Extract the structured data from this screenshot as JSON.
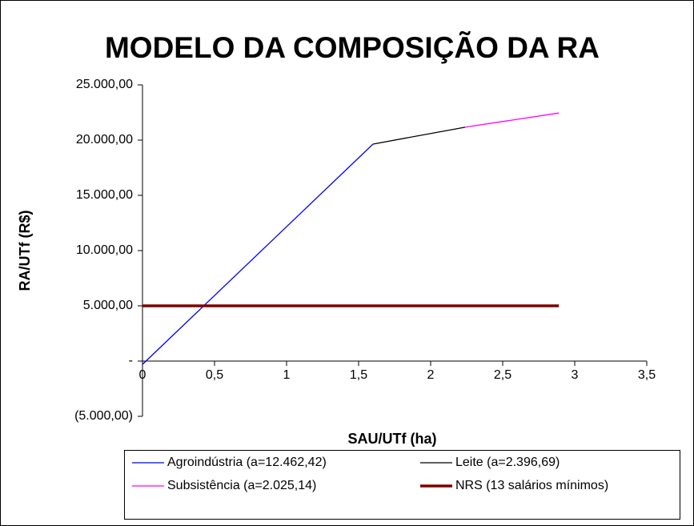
{
  "chart_data": {
    "type": "line",
    "title": "MODELO DA COMPOSIÇÃO DA RA",
    "x_label": "SAU/UTf (ha)",
    "y_label": "RA/UTf (R$)",
    "xlim": [
      0,
      3.5
    ],
    "xticks": [
      0,
      {
        "value": 0.5,
        "label": "0,5"
      },
      1,
      {
        "value": 1.5,
        "label": "1,5"
      },
      2,
      {
        "value": 2.5,
        "label": "2,5"
      },
      3,
      {
        "value": 3.5,
        "label": "3,5"
      }
    ],
    "ylim": [
      -5000,
      25000
    ],
    "yticks": [
      {
        "value": -5000,
        "label": "(5.000,00)"
      },
      {
        "value": 0,
        "label": "-"
      },
      {
        "value": 5000,
        "label": "5.000,00"
      },
      {
        "value": 10000,
        "label": "10.000,00"
      },
      {
        "value": 15000,
        "label": "15.000,00"
      },
      {
        "value": 20000,
        "label": "20.000,00"
      },
      {
        "value": 25000,
        "label": "25.000,00"
      }
    ],
    "series": [
      {
        "name": "Agroindústria (a=12.462,42)",
        "color": "#0000ff",
        "width": 1.3,
        "x": [
          0,
          1.6
        ],
        "values": [
          -300,
          19640
        ]
      },
      {
        "name": "Leite (a=2.396,69)",
        "color": "#000000",
        "width": 1.3,
        "x": [
          1.6,
          2.24
        ],
        "values": [
          19640,
          21170
        ]
      },
      {
        "name": "Subsistência (a=2.025,14)",
        "color": "#ff00ff",
        "width": 1.3,
        "x": [
          2.24,
          2.89
        ],
        "values": [
          21170,
          22450
        ]
      },
      {
        "name": "NRS (13 salários mínimos)",
        "color": "#800000",
        "width": 3.5,
        "x": [
          0,
          2.89
        ],
        "values": [
          5000,
          5000
        ]
      }
    ]
  }
}
